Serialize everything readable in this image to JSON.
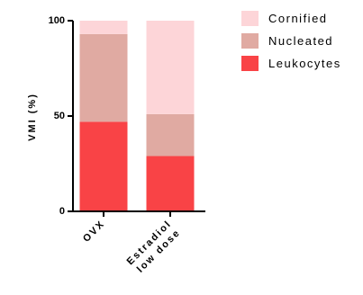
{
  "chart_data": {
    "type": "bar",
    "stacked": true,
    "categories": [
      "OVX",
      "Estradiol low dose"
    ],
    "category_label_lines": [
      [
        "OVX"
      ],
      [
        "Estradiol",
        "low dose"
      ]
    ],
    "series": [
      {
        "name": "Leukocytes",
        "values": [
          47,
          29
        ],
        "color": "#f94346"
      },
      {
        "name": "Nucleated",
        "values": [
          46,
          22
        ],
        "color": "#e0aaa2"
      },
      {
        "name": "Cornified",
        "values": [
          7,
          49
        ],
        "color": "#fdd5d8"
      }
    ],
    "legend_order": [
      "Cornified",
      "Nucleated",
      "Leukocytes"
    ],
    "ylabel": "VMI (%)",
    "xlabel": "",
    "title": "",
    "ylim": [
      0,
      100
    ],
    "yticks": [
      0,
      50,
      100
    ],
    "grid": false,
    "legend_position": "top-right"
  }
}
